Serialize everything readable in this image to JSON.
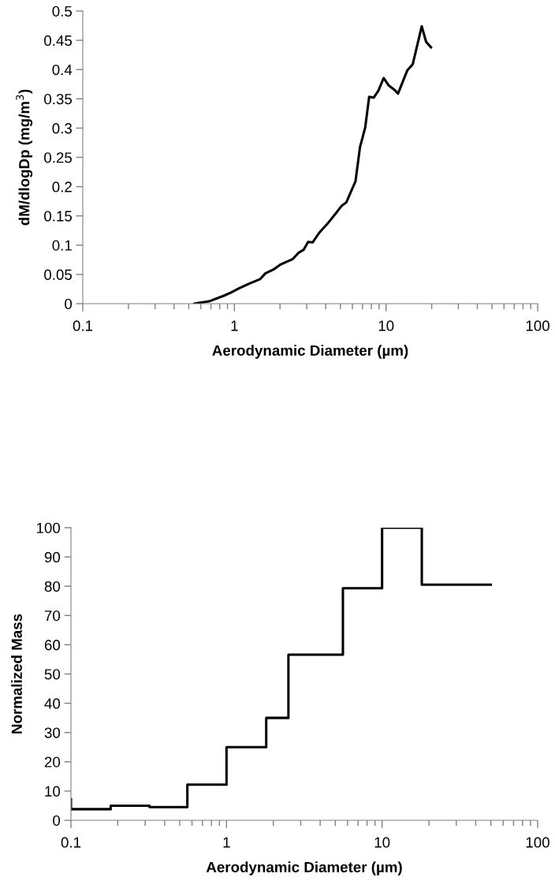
{
  "chart_data": [
    {
      "type": "line",
      "xlabel": "Aerodynamic Diameter (µm)",
      "ylabel": "dM/dlogDp (mg/m$^{3}$)",
      "log": "x",
      "xlim": [
        0.1,
        100
      ],
      "xticks": [
        0.1,
        1,
        10,
        100
      ],
      "ylim": [
        0,
        0.5
      ],
      "yticks": [
        0,
        0.05,
        0.1,
        0.15,
        0.2,
        0.25,
        0.3,
        0.35,
        0.4,
        0.45,
        0.5
      ],
      "grid": false,
      "legend": false,
      "marker": "none",
      "line_style": "solid",
      "series": [
        {
          "color": "#000000",
          "x": [
            0.545,
            0.69,
            0.85,
            0.95,
            1.07,
            1.26,
            1.48,
            1.6,
            1.81,
            2.0,
            2.43,
            2.64,
            2.86,
            3.06,
            3.28,
            3.63,
            4.09,
            4.61,
            5.09,
            5.47,
            5.86,
            6.29,
            6.73,
            7.29,
            7.74,
            8.29,
            8.91,
            9.64,
            10.4,
            11.3,
            12.0,
            13.8,
            15.0,
            17.2,
            18.4,
            19.8
          ],
          "values": [
            0.0,
            0.0045,
            0.0135,
            0.019,
            0.026,
            0.0346,
            0.042,
            0.0517,
            0.0584,
            0.0665,
            0.0764,
            0.0867,
            0.0921,
            0.1056,
            0.1047,
            0.1213,
            0.136,
            0.1527,
            0.167,
            0.173,
            0.191,
            0.209,
            0.267,
            0.301,
            0.3535,
            0.352,
            0.364,
            0.3855,
            0.373,
            0.366,
            0.359,
            0.3985,
            0.409,
            0.474,
            0.447,
            0.438
          ]
        }
      ]
    },
    {
      "type": "step",
      "xlabel": "Aerodynamic Diameter (µm)",
      "ylabel": "Normalized Mass",
      "log": "x",
      "xlim": [
        0.1,
        100
      ],
      "xticks": [
        0.1,
        1,
        10,
        100
      ],
      "ylim": [
        0,
        100
      ],
      "yticks": [
        0,
        10,
        20,
        30,
        40,
        50,
        60,
        70,
        80,
        90,
        100
      ],
      "grid": false,
      "legend": false,
      "marker": "none",
      "line_style": "solid",
      "series": [
        {
          "color": "#000000",
          "x": [
            0.1,
            0.1,
            0.18,
            0.32,
            0.56,
            1.0,
            1.8,
            2.5,
            5.6,
            10,
            18,
            50
          ],
          "values": [
            7.2,
            3.8,
            5.0,
            4.5,
            12.2,
            25.0,
            35.0,
            56.6,
            79.3,
            100,
            80.5,
            80.5
          ]
        }
      ]
    }
  ]
}
